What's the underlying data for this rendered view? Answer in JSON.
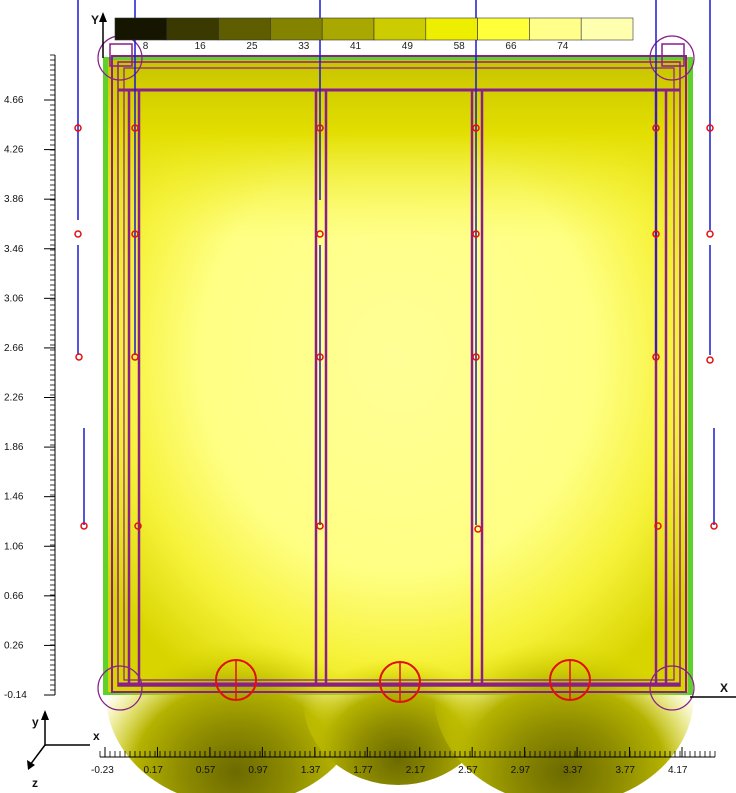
{
  "chart_data": {
    "type": "heatmap",
    "colors": {
      "low": "#2a2a00",
      "mid": "#b8b800",
      "high": "#ffff80",
      "frame": "#8a1f8a",
      "rebar": "#1a1ad0",
      "marker": "#e01010",
      "edge": "#44cc22"
    },
    "legend": {
      "values": [
        "8",
        "16",
        "25",
        "33",
        "41",
        "49",
        "58",
        "66",
        "74"
      ],
      "swatches": [
        "#151500",
        "#3a3a00",
        "#5e5e00",
        "#838300",
        "#a8a800",
        "#cccc00",
        "#eeee00",
        "#ffff3a",
        "#ffff8a",
        "#ffffb0"
      ]
    },
    "y_ticks": [
      "4.66",
      "4.26",
      "3.86",
      "3.46",
      "3.06",
      "2.66",
      "2.26",
      "1.86",
      "1.46",
      "1.06",
      "0.66",
      "0.26",
      "-0.14"
    ],
    "x_ticks": [
      "-0.23",
      "0.17",
      "0.57",
      "0.97",
      "1.37",
      "1.77",
      "2.17",
      "2.57",
      "2.97",
      "3.37",
      "3.77",
      "4.17"
    ],
    "axes": {
      "global_y": "Y",
      "global_x": "X",
      "local_x": "x",
      "local_y": "y",
      "local_z": "z"
    }
  }
}
